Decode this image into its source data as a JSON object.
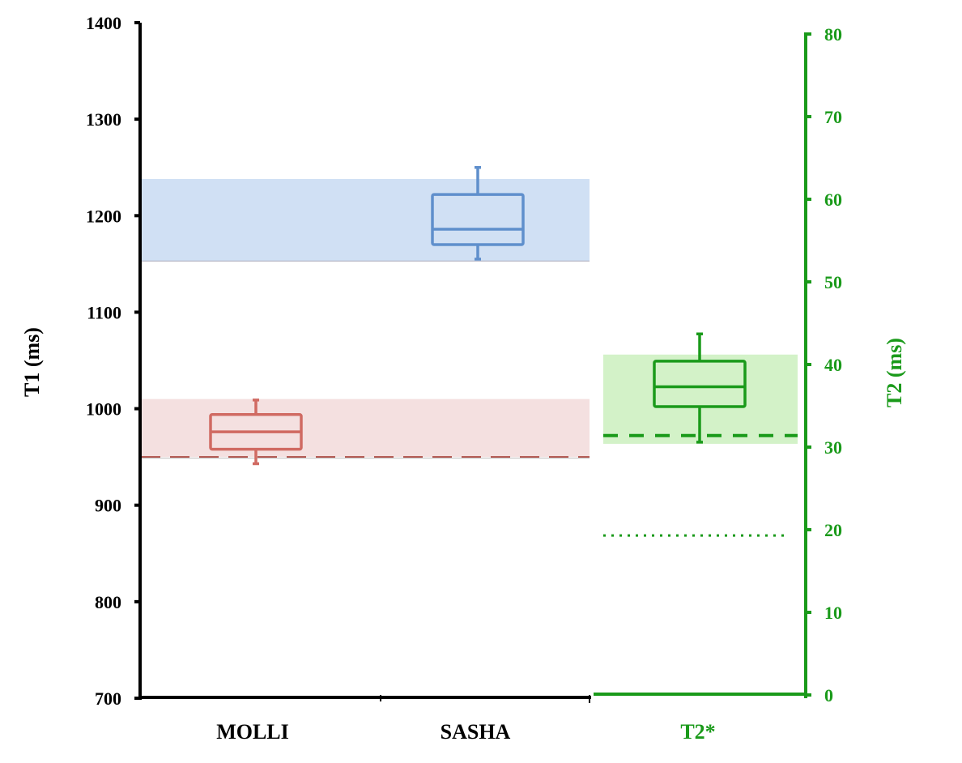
{
  "chart_data": {
    "type": "box",
    "left_axis": {
      "label": "T1 (ms)",
      "range": [
        700,
        1400
      ],
      "ticks": [
        700,
        800,
        900,
        1000,
        1100,
        1200,
        1300,
        1400
      ],
      "color": "#000000"
    },
    "right_axis": {
      "label": "T2 (ms)",
      "range": [
        0,
        80
      ],
      "ticks": [
        0,
        10,
        20,
        30,
        40,
        50,
        60,
        70,
        80
      ],
      "color": "#1a9a1a"
    },
    "categories": [
      "MOLLI",
      "SASHA",
      "T2*"
    ],
    "boxes": [
      {
        "name": "MOLLI",
        "axis": "left",
        "whisker_low": 943,
        "q1": 958,
        "median": 976,
        "q3": 994,
        "whisker_high": 1009,
        "color": "#d06a62"
      },
      {
        "name": "SASHA",
        "axis": "left",
        "whisker_low": 1155,
        "q1": 1170,
        "median": 1186,
        "q3": 1222,
        "whisker_high": 1250,
        "color": "#5f8fcc"
      },
      {
        "name": "T2*",
        "axis": "right",
        "whisker_low": 30.6,
        "q1": 34.9,
        "median": 37.3,
        "q3": 40.4,
        "whisker_high": 43.7,
        "color": "#1a9a1a"
      }
    ],
    "reference_bands": [
      {
        "name": "MOLLI",
        "axis": "left",
        "range": [
          950,
          1010
        ],
        "color": "#f4e0e0",
        "dashed_line": 950
      },
      {
        "name": "SASHA",
        "axis": "left",
        "range": [
          1153,
          1238
        ],
        "color": "#d0e0f4"
      },
      {
        "name": "T2*",
        "axis": "right",
        "range": [
          30.4,
          41.2
        ],
        "color": "#d3f2c8",
        "dashed_line": 31.4,
        "dotted_line": 19.3
      }
    ]
  }
}
